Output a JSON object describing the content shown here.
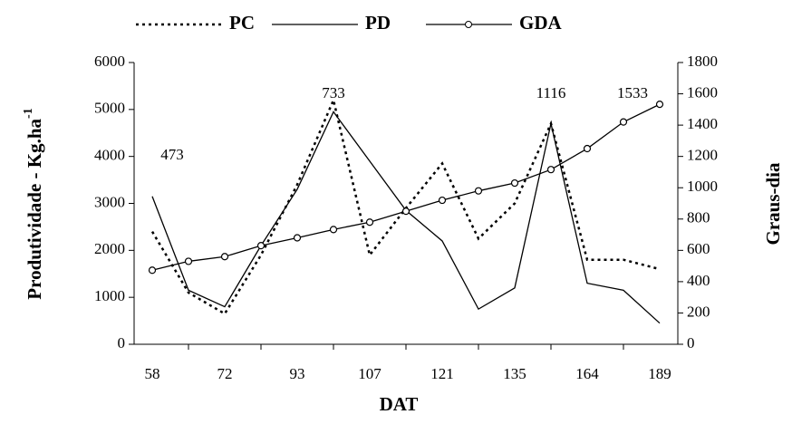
{
  "chart_data": {
    "type": "line",
    "categories": [
      "58",
      null,
      "72",
      null,
      "93",
      null,
      "107",
      null,
      "121",
      null,
      "135",
      null,
      "164",
      null,
      "189"
    ],
    "xlabel": "DAT",
    "ylabel": {
      "text": "Produtividade - Kg.ha",
      "sup": "-1"
    },
    "y2label": "Graus-dia",
    "ylim": [
      0,
      6000
    ],
    "yticks": [
      0,
      1000,
      2000,
      3000,
      4000,
      5000,
      6000
    ],
    "y2lim": [
      0,
      1800
    ],
    "y2ticks": [
      0,
      200,
      400,
      600,
      800,
      1000,
      1200,
      1400,
      1600,
      1800
    ],
    "series": [
      {
        "name": "PC",
        "color": "#000000",
        "style": "dotted",
        "values": [
          2400,
          1100,
          650,
          1900,
          3400,
          5200,
          1900,
          2900,
          3850,
          2250,
          3000,
          4700,
          1800,
          1800,
          1600
        ]
      },
      {
        "name": "PD",
        "color": "#000000",
        "style": "solid",
        "values": [
          3150,
          1150,
          800,
          2100,
          3300,
          4950,
          3900,
          2850,
          2200,
          750,
          1200,
          4700,
          1300,
          1150,
          450
        ]
      },
      {
        "name": "GDA",
        "color": "#000000",
        "style": "marker",
        "axis": "y2",
        "values": [
          473,
          530,
          560,
          630,
          680,
          733,
          780,
          850,
          920,
          980,
          1030,
          1116,
          1250,
          1420,
          1533
        ],
        "value_labels": [
          "473",
          null,
          null,
          null,
          null,
          "733",
          null,
          null,
          null,
          null,
          null,
          "1116",
          null,
          null,
          "1533"
        ]
      }
    ],
    "legend": "top"
  }
}
